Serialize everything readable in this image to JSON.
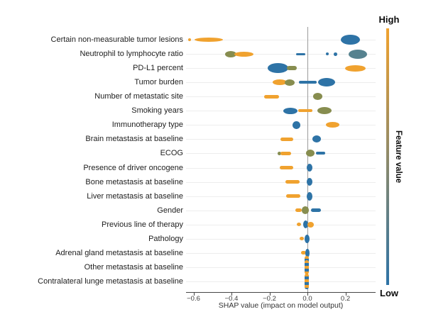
{
  "figure": {
    "bg": "#ffffff",
    "colors": {
      "orange": "#f0a22f",
      "blue": "#2e73a6",
      "olive": "#878d4f",
      "teal": "#56828f",
      "grid": "#ededed",
      "axis": "#454545",
      "zero_line": "#9b9b9b",
      "tick_text": "#3c3c3c",
      "label_text": "#1d1d1d"
    }
  },
  "chart_data": {
    "type": "scatter",
    "variant": "shap-beeswarm-summary",
    "title": "",
    "xlabel": "SHAP value (impact on model output)",
    "ylabel": "",
    "xlim": [
      -0.64,
      0.36
    ],
    "grid": "horizontal-faint",
    "x_tick_labels": [
      "−0.6",
      "−0.4",
      "−0.2",
      "0.0",
      "0.2"
    ],
    "x_tick_values": [
      -0.6,
      -0.4,
      -0.2,
      0.0,
      0.2
    ],
    "colorbar": {
      "high_label": "High",
      "low_label": "Low",
      "title": "Feature value",
      "top_color": "#f0a22f",
      "bottom_color": "#2e73a6",
      "position": "right"
    },
    "features": [
      {
        "label": "Certain non-measurable tumor lesions",
        "clusters": [
          {
            "color": "orange",
            "x": -0.62,
            "w": 0.015,
            "h": 4,
            "shape": "dot"
          },
          {
            "color": "orange",
            "x": -0.52,
            "w": 0.15,
            "h": 6,
            "shape": "blob"
          },
          {
            "color": "blue",
            "x": 0.225,
            "w": 0.1,
            "h": 14,
            "shape": "blob"
          }
        ]
      },
      {
        "label": "Neutrophil to lymphocyte ratio",
        "clusters": [
          {
            "color": "olive",
            "x": -0.405,
            "w": 0.06,
            "h": 9,
            "shape": "blob"
          },
          {
            "color": "orange",
            "x": -0.335,
            "w": 0.1,
            "h": 7,
            "shape": "blob"
          },
          {
            "color": "blue",
            "x": -0.035,
            "w": 0.05,
            "h": 3,
            "shape": "dash"
          },
          {
            "color": "blue",
            "x": 0.105,
            "w": 0.015,
            "h": 4,
            "shape": "dot"
          },
          {
            "color": "blue",
            "x": 0.147,
            "w": 0.02,
            "h": 5,
            "shape": "dot"
          },
          {
            "color": "teal",
            "x": 0.265,
            "w": 0.095,
            "h": 13,
            "shape": "blob"
          }
        ]
      },
      {
        "label": "PD-L1 percent",
        "clusters": [
          {
            "color": "blue",
            "x": -0.155,
            "w": 0.11,
            "h": 14,
            "shape": "blob"
          },
          {
            "color": "olive",
            "x": -0.082,
            "w": 0.05,
            "h": 6,
            "shape": "dash"
          },
          {
            "color": "orange",
            "x": 0.252,
            "w": 0.11,
            "h": 9,
            "shape": "blob"
          }
        ]
      },
      {
        "label": "Tumor burden",
        "clusters": [
          {
            "color": "orange",
            "x": -0.145,
            "w": 0.075,
            "h": 8,
            "shape": "blob"
          },
          {
            "color": "olive",
            "x": -0.093,
            "w": 0.05,
            "h": 9,
            "shape": "blob"
          },
          {
            "color": "blue",
            "x": 0.003,
            "w": 0.095,
            "h": 3.5,
            "shape": "dash"
          },
          {
            "color": "blue",
            "x": 0.1,
            "w": 0.09,
            "h": 12,
            "shape": "blob"
          }
        ]
      },
      {
        "label": "Number of metastatic site",
        "clusters": [
          {
            "color": "orange",
            "x": -0.19,
            "w": 0.08,
            "h": 5,
            "shape": "dash"
          },
          {
            "color": "olive",
            "x": 0.053,
            "w": 0.05,
            "h": 10,
            "shape": "blob"
          }
        ]
      },
      {
        "label": "Smoking years",
        "clusters": [
          {
            "color": "blue",
            "x": -0.09,
            "w": 0.075,
            "h": 9,
            "shape": "blob"
          },
          {
            "color": "orange",
            "x": -0.01,
            "w": 0.075,
            "h": 4,
            "shape": "dash"
          },
          {
            "color": "olive",
            "x": 0.09,
            "w": 0.075,
            "h": 10,
            "shape": "blob"
          }
        ]
      },
      {
        "label": "Immunotherapy type",
        "clusters": [
          {
            "color": "blue",
            "x": -0.057,
            "w": 0.042,
            "h": 11,
            "shape": "blob"
          },
          {
            "color": "orange",
            "x": 0.132,
            "w": 0.07,
            "h": 8,
            "shape": "blob"
          }
        ]
      },
      {
        "label": "Brain metastasis at baseline",
        "clusters": [
          {
            "color": "orange",
            "x": -0.11,
            "w": 0.068,
            "h": 5,
            "shape": "dash"
          },
          {
            "color": "blue",
            "x": 0.047,
            "w": 0.045,
            "h": 10,
            "shape": "blob"
          }
        ]
      },
      {
        "label": "ECOG",
        "clusters": [
          {
            "color": "olive",
            "x": -0.148,
            "w": 0.02,
            "h": 5,
            "shape": "dot"
          },
          {
            "color": "orange",
            "x": -0.115,
            "w": 0.055,
            "h": 5,
            "shape": "dash"
          },
          {
            "color": "olive",
            "x": 0.015,
            "w": 0.045,
            "h": 10,
            "shape": "blob"
          },
          {
            "color": "blue",
            "x": 0.07,
            "w": 0.05,
            "h": 4,
            "shape": "dash"
          }
        ]
      },
      {
        "label": "Presence of driver oncogene",
        "clusters": [
          {
            "color": "orange",
            "x": -0.11,
            "w": 0.07,
            "h": 5,
            "shape": "dash"
          },
          {
            "color": "blue",
            "x": 0.012,
            "w": 0.03,
            "h": 11,
            "shape": "blob"
          }
        ]
      },
      {
        "label": "Bone metastasis at baseline",
        "clusters": [
          {
            "color": "orange",
            "x": -0.08,
            "w": 0.075,
            "h": 5,
            "shape": "dash"
          },
          {
            "color": "blue",
            "x": 0.012,
            "w": 0.03,
            "h": 11,
            "shape": "blob"
          }
        ]
      },
      {
        "label": "Liver metastasis at baseline",
        "clusters": [
          {
            "color": "orange",
            "x": -0.075,
            "w": 0.075,
            "h": 5,
            "shape": "dash"
          },
          {
            "color": "blue",
            "x": 0.01,
            "w": 0.03,
            "h": 12,
            "shape": "blob"
          }
        ]
      },
      {
        "label": "Gender",
        "clusters": [
          {
            "color": "orange",
            "x": -0.048,
            "w": 0.035,
            "h": 5,
            "shape": "dash"
          },
          {
            "color": "olive",
            "x": -0.011,
            "w": 0.04,
            "h": 11,
            "shape": "blob"
          },
          {
            "color": "blue",
            "x": 0.045,
            "w": 0.055,
            "h": 5,
            "shape": "dash"
          }
        ]
      },
      {
        "label": "Previous line of therapy",
        "clusters": [
          {
            "color": "orange",
            "x": -0.045,
            "w": 0.022,
            "h": 5,
            "shape": "dot"
          },
          {
            "color": "blue",
            "x": -0.01,
            "w": 0.026,
            "h": 11,
            "shape": "blob"
          },
          {
            "color": "orange",
            "x": 0.016,
            "w": 0.035,
            "h": 8,
            "shape": "blob"
          }
        ]
      },
      {
        "label": "Pathology",
        "clusters": [
          {
            "color": "orange",
            "x": -0.03,
            "w": 0.02,
            "h": 5,
            "shape": "dot"
          },
          {
            "color": "blue",
            "x": -0.003,
            "w": 0.026,
            "h": 12,
            "shape": "blob"
          }
        ]
      },
      {
        "label": "Adrenal gland metastasis at baseline",
        "clusters": [
          {
            "color": "orange",
            "x": -0.022,
            "w": 0.026,
            "h": 5,
            "shape": "dash"
          },
          {
            "color": "blue",
            "x": 0.0,
            "w": 0.022,
            "h": 12,
            "shape": "blob"
          },
          {
            "color": "mixed",
            "x": -0.004,
            "w": 0.02,
            "h": 10,
            "shape": "stripe",
            "dy": 9
          }
        ]
      },
      {
        "label": "Other metastasis at baseline",
        "clusters": [
          {
            "color": "mixed",
            "x": -0.004,
            "w": 0.021,
            "h": 20,
            "shape": "stripe"
          }
        ]
      },
      {
        "label": "Contralateral lunge metastasis at baseline",
        "clusters": [
          {
            "color": "mixed",
            "x": -0.004,
            "w": 0.021,
            "h": 22,
            "shape": "stripe"
          }
        ]
      }
    ]
  }
}
